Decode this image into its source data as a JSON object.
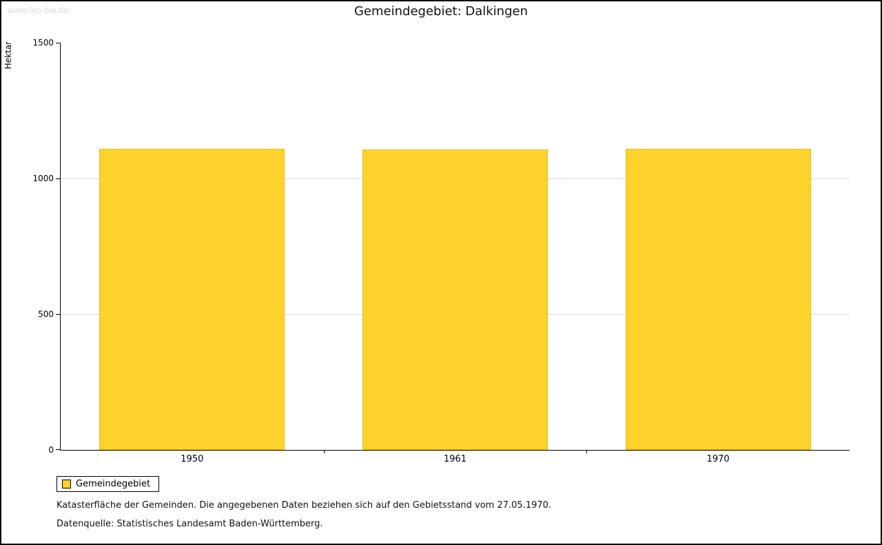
{
  "watermark": "www.leo-bw.de",
  "title": "Gemeindegebiet: Dalkingen",
  "legend": {
    "label": "Gemeindegebiet"
  },
  "footnotes": {
    "line1": "Katasterfläche der Gemeinden. Die angegebenen Daten beziehen sich auf den Gebietsstand vom 27.05.1970.",
    "line2": "Datenquelle: Statistisches Landesamt Baden-Württemberg."
  },
  "chart_data": {
    "type": "bar",
    "title": "Gemeindegebiet: Dalkingen",
    "categories": [
      "1950",
      "1961",
      "1970"
    ],
    "series": [
      {
        "name": "Gemeindegebiet",
        "values": [
          1110,
          1106,
          1110
        ]
      }
    ],
    "xlabel": "",
    "ylabel": "Hektar",
    "ylim": [
      0,
      1500
    ],
    "yticks": [
      0,
      500,
      1000,
      1500
    ],
    "grid": true,
    "gridline_color": "#d9d9d9",
    "bar_color": "#FCD22B",
    "legend_position": "bottom-left"
  }
}
